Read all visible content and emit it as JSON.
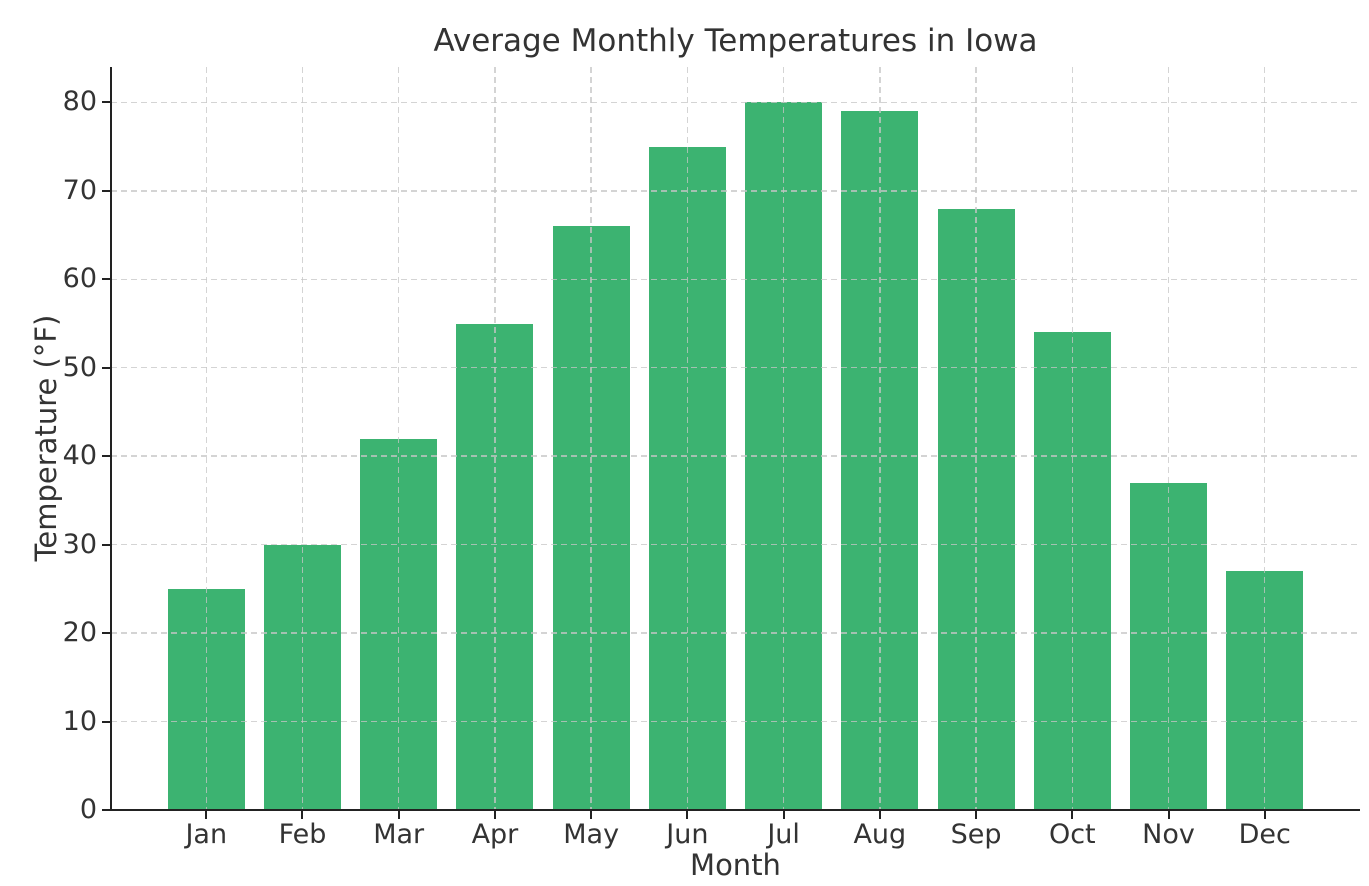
{
  "chart_data": {
    "type": "bar",
    "title": "Average Monthly Temperatures in Iowa",
    "xlabel": "Month",
    "ylabel": "Temperature (°F)",
    "categories": [
      "Jan",
      "Feb",
      "Mar",
      "Apr",
      "May",
      "Jun",
      "Jul",
      "Aug",
      "Sep",
      "Oct",
      "Nov",
      "Dec"
    ],
    "values": [
      25,
      30,
      42,
      55,
      66,
      75,
      80,
      79,
      68,
      54,
      37,
      27
    ],
    "yticks": [
      0,
      10,
      20,
      30,
      40,
      50,
      60,
      70,
      80
    ],
    "ylim": [
      0,
      84
    ],
    "grid": true,
    "grid_style": "dashed",
    "legend": "none",
    "bar_color": "#3cb371",
    "grid_color": "#c6c6c6",
    "axis_color": "#222222",
    "text_color": "#333333"
  }
}
